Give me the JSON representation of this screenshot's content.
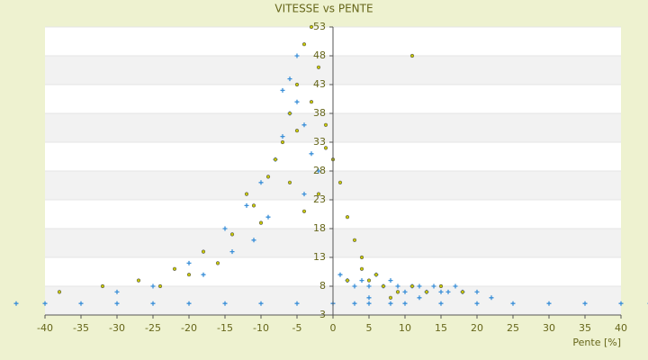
{
  "chart_data": {
    "type": "scatter",
    "title": "VITESSE vs PENTE",
    "x_label": "Pente [%]",
    "xlim": [
      -40,
      40
    ],
    "xticks": [
      -40,
      -35,
      -30,
      -25,
      -20,
      -15,
      -10,
      -5,
      0,
      5,
      10,
      15,
      20,
      25,
      30,
      35,
      40
    ],
    "ylim": [
      3,
      53
    ],
    "yticks": [
      3,
      8,
      13,
      18,
      23,
      28,
      33,
      38,
      43,
      48,
      53
    ],
    "grid": true,
    "series": [
      {
        "color": "#3a8fd8",
        "marker": "plus",
        "x": [
          -44,
          -40,
          -35,
          -30,
          -25,
          -20,
          -15,
          -10,
          -5,
          0,
          5,
          10,
          15,
          20,
          25,
          30,
          35,
          40,
          44,
          1,
          2,
          3,
          4,
          5,
          6,
          7,
          8,
          9,
          10,
          11,
          12,
          13,
          14,
          15,
          16,
          17,
          18,
          20,
          22,
          -20,
          -15,
          -12,
          -10,
          -8,
          -7,
          -6,
          -5,
          -4,
          -3,
          -2,
          -6,
          -5,
          -7,
          -4,
          -9,
          -11,
          -14,
          -18,
          -25,
          -30,
          3,
          5,
          8,
          12
        ],
        "values": [
          5,
          5,
          5,
          5,
          5,
          5,
          5,
          5,
          5,
          5,
          5,
          5,
          5,
          5,
          5,
          5,
          5,
          5,
          5,
          10,
          9,
          8,
          9,
          8,
          10,
          8,
          9,
          8,
          7,
          8,
          8,
          7,
          8,
          7,
          7,
          8,
          7,
          7,
          6,
          12,
          18,
          22,
          26,
          30,
          34,
          38,
          40,
          36,
          31,
          28,
          44,
          48,
          42,
          24,
          20,
          16,
          14,
          10,
          8,
          7,
          5,
          6,
          5,
          6
        ]
      },
      {
        "color": "#c8c800",
        "marker": "circle",
        "x": [
          -38,
          -32,
          -27,
          -22,
          -18,
          -14,
          -11,
          -9,
          -7,
          -6,
          -5,
          -4,
          -3,
          -2,
          -1,
          0,
          1,
          2,
          3,
          4,
          5,
          7,
          9,
          11,
          13,
          15,
          18,
          -8,
          -6,
          -4,
          -5,
          -3,
          -10,
          -12,
          -16,
          -20,
          -24,
          11,
          2,
          4,
          6,
          8,
          -1,
          -2
        ],
        "values": [
          7,
          8,
          9,
          11,
          14,
          17,
          22,
          27,
          33,
          38,
          43,
          50,
          53,
          46,
          36,
          30,
          26,
          20,
          16,
          13,
          9,
          8,
          7,
          8,
          7,
          8,
          7,
          30,
          26,
          21,
          35,
          40,
          19,
          24,
          12,
          10,
          8,
          48,
          9,
          11,
          10,
          6,
          32,
          24
        ]
      }
    ]
  }
}
